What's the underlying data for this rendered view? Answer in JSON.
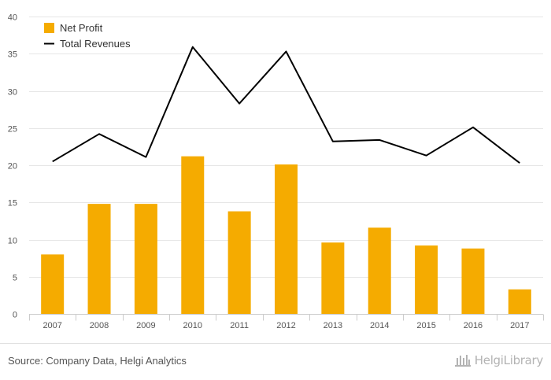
{
  "chart_data": {
    "type": "bar",
    "categories": [
      "2007",
      "2008",
      "2009",
      "2010",
      "2011",
      "2012",
      "2013",
      "2014",
      "2015",
      "2016",
      "2017"
    ],
    "series": [
      {
        "name": "Net Profit",
        "kind": "bar",
        "color": "#f5ab00",
        "values": [
          8.0,
          14.8,
          14.8,
          21.2,
          13.8,
          20.1,
          9.6,
          11.6,
          9.2,
          8.8,
          3.3
        ]
      },
      {
        "name": "Total Revenues",
        "kind": "line",
        "color": "#000000",
        "values": [
          20.5,
          24.2,
          21.1,
          35.9,
          28.3,
          35.3,
          23.2,
          23.4,
          21.3,
          25.1,
          20.3
        ]
      }
    ],
    "yticks": [
      "0",
      "5",
      "10",
      "15",
      "20",
      "25",
      "30",
      "35",
      "40"
    ],
    "ylim": [
      0,
      40
    ],
    "grid": true,
    "legend": "top-left"
  },
  "footer": {
    "source": "Source: Company Data, Helgi Analytics",
    "brand": "HelgiLibrary"
  },
  "colors": {
    "bar": "#f5ab00",
    "line": "#000000",
    "grid": "#e6e6e6"
  }
}
